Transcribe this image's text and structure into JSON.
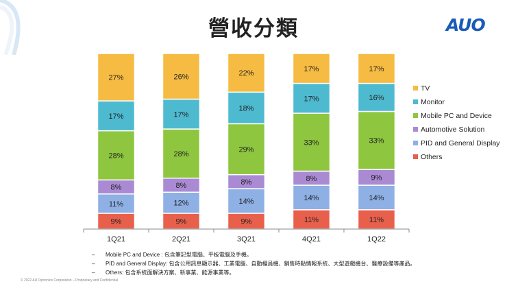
{
  "page": {
    "title": "營收分類",
    "logo": "AUO",
    "footer": "© 2022 AU Optronics Corporation – Proprietary and Confidential"
  },
  "notes": [
    {
      "dash": "–",
      "text": "Mobile PC and Device : 包含筆記型電腦、平板電腦及手機。"
    },
    {
      "dash": "–",
      "text": "PID and General Display: 包含公用訊息顯示器、工業電腦、自動櫃員機、銷售時點情報系統、大型遊戲機台、醫療設備等產品。"
    },
    {
      "dash": "–",
      "text": "Others: 包含系統面解決方案、新事業、能源事業等。"
    }
  ],
  "chart_data": {
    "type": "bar",
    "stacked": true,
    "title": "營收分類",
    "categories": [
      "1Q21",
      "2Q21",
      "3Q21",
      "4Q21",
      "1Q22"
    ],
    "ylim": [
      0,
      100
    ],
    "series": [
      {
        "name": "Others",
        "color": "#e8604c",
        "values": [
          9,
          9,
          9,
          11,
          11
        ]
      },
      {
        "name": "PID and General Display",
        "color": "#8eb0e4",
        "values": [
          11,
          12,
          14,
          14,
          14
        ]
      },
      {
        "name": "Automotive Solution",
        "color": "#a98ad3",
        "values": [
          8,
          8,
          8,
          8,
          9
        ]
      },
      {
        "name": "Mobile PC and Device",
        "color": "#8ec63f",
        "values": [
          28,
          28,
          29,
          33,
          33
        ]
      },
      {
        "name": "Monitor",
        "color": "#4dbad0",
        "values": [
          17,
          17,
          18,
          17,
          16
        ]
      },
      {
        "name": "TV",
        "color": "#f6bb42",
        "values": [
          27,
          26,
          22,
          17,
          17
        ]
      }
    ],
    "legend_order": [
      "TV",
      "Monitor",
      "Mobile PC and Device",
      "Automotive Solution",
      "PID and General Display",
      "Others"
    ],
    "legend_position": "right"
  }
}
